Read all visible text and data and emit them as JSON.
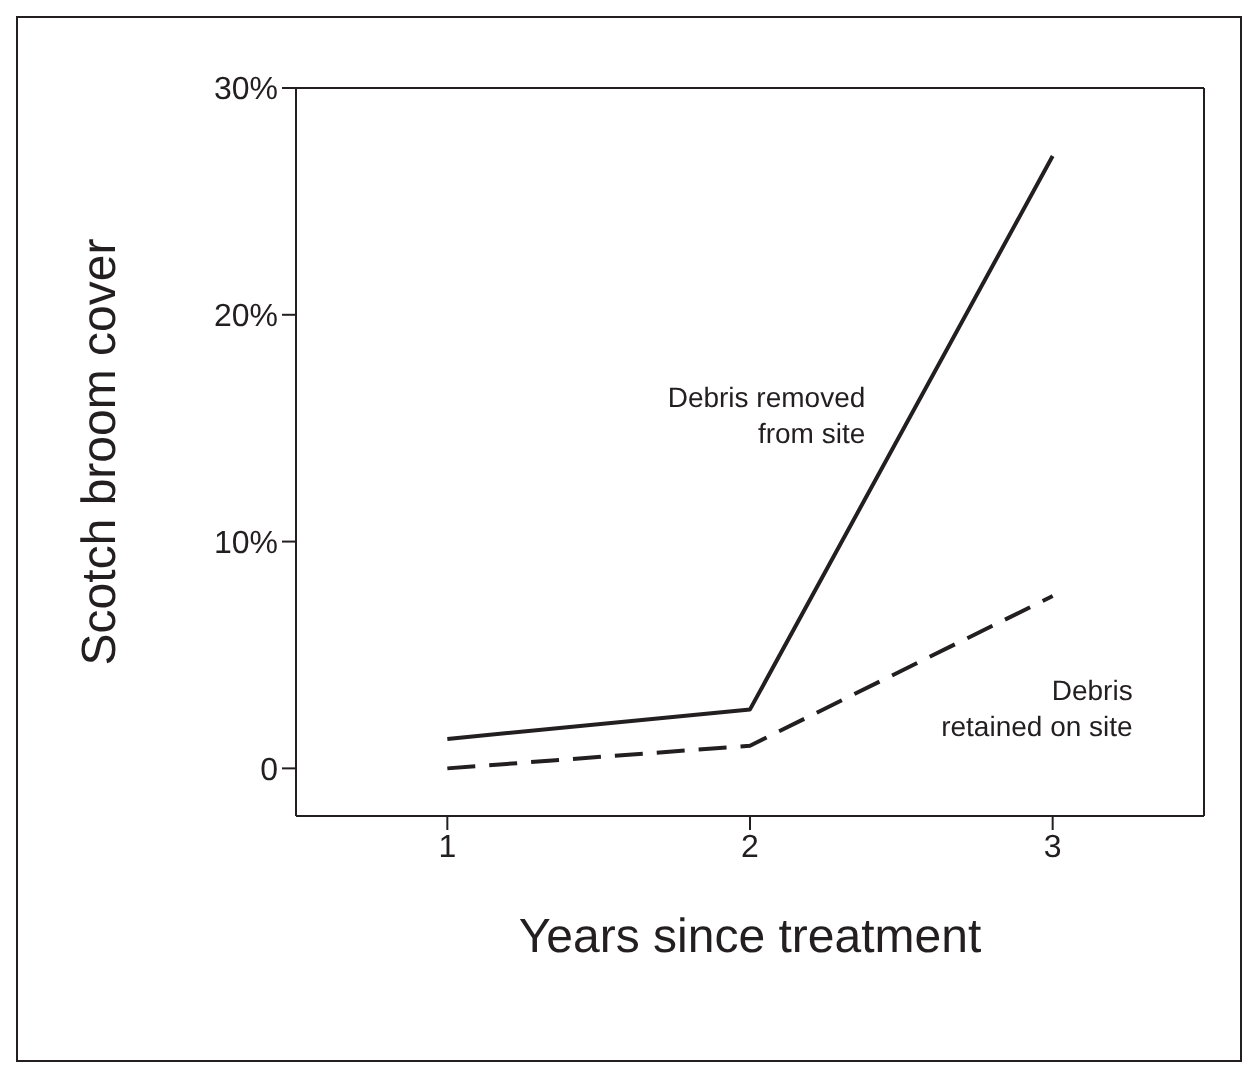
{
  "chart_data": {
    "type": "line",
    "xlabel": "Years since treatment",
    "ylabel": "Scotch broom cover",
    "x": [
      1,
      2,
      3
    ],
    "series": [
      {
        "name": "Debris removed from site",
        "color": "#231f20",
        "line_style": "solid",
        "values": [
          1.3,
          2.6,
          27.0
        ]
      },
      {
        "name": "Debris retained on site",
        "color": "#231f20",
        "line_style": "dashed",
        "values": [
          0,
          1.0,
          7.6
        ]
      }
    ],
    "xlim": [
      0.5,
      3.5
    ],
    "xticks": [
      1,
      2,
      3
    ],
    "ylim": [
      -2.1,
      30
    ],
    "yticks": [
      0,
      {
        "value": 10,
        "label": "10%"
      },
      {
        "value": 20,
        "label": "20%"
      },
      {
        "value": 30,
        "label": "30%"
      }
    ],
    "marker": "none",
    "legend": false,
    "grid": false
  }
}
